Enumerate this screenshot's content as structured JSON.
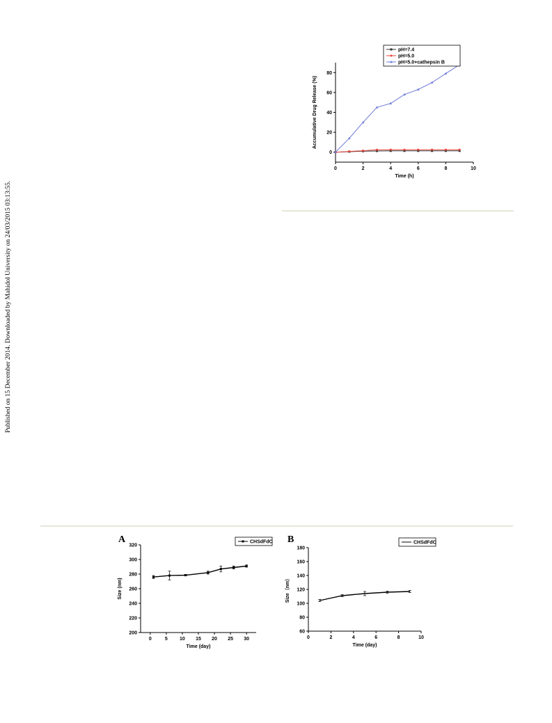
{
  "margin_note": "Published on 15 December 2014. Downloaded by Mahidol University on 24/03/2015 03:13:55.",
  "chart_data": [
    {
      "id": "release",
      "type": "line",
      "title": "",
      "xlabel": "Time (h)",
      "ylabel": "Accumulative Drug Release (%)",
      "xlim": [
        0,
        10
      ],
      "ylim": [
        -10,
        90
      ],
      "xticks": [
        0,
        2,
        4,
        6,
        8,
        10
      ],
      "yticks": [
        0,
        20,
        40,
        60,
        80
      ],
      "legend": "top-right",
      "series": [
        {
          "name": "pH=7.4",
          "color": "#333333",
          "marker": "square",
          "x": [
            0,
            1,
            2,
            3,
            4,
            5,
            6,
            7,
            8,
            9
          ],
          "y": [
            0,
            0.5,
            1,
            1.2,
            1.3,
            1.3,
            1.3,
            1.3,
            1.3,
            1.3
          ]
        },
        {
          "name": "pH=5.0",
          "color": "#e8463c",
          "marker": "circle",
          "x": [
            0,
            1,
            2,
            3,
            4,
            5,
            6,
            7,
            8,
            9
          ],
          "y": [
            0,
            0.8,
            1.5,
            2.4,
            2.5,
            2.5,
            2.5,
            2.5,
            2.5,
            2.5
          ]
        },
        {
          "name": "pH=5.0+cathepsin B",
          "color": "#6a78d6",
          "marker": "triangle",
          "x": [
            0,
            1,
            2,
            3,
            4,
            5,
            6,
            7,
            8,
            9
          ],
          "y": [
            0,
            14,
            30,
            45,
            49,
            58,
            63,
            70,
            79,
            88
          ]
        }
      ]
    },
    {
      "id": "A",
      "panel_label": "A",
      "type": "line",
      "title": "",
      "xlabel": "Time (day)",
      "ylabel": "Size (nm)",
      "xlim": [
        -3,
        33
      ],
      "ylim": [
        200,
        320
      ],
      "xticks": [
        0,
        5,
        10,
        15,
        20,
        25,
        30
      ],
      "yticks": [
        200,
        220,
        240,
        260,
        280,
        300,
        320
      ],
      "legend": "top-right",
      "series": [
        {
          "name": "CHSdFdC",
          "color": "#000000",
          "marker": "square",
          "x": [
            1,
            6,
            11,
            18,
            22,
            26,
            30
          ],
          "y": [
            276,
            278,
            278.5,
            282,
            287,
            289,
            291
          ],
          "err": [
            2,
            6,
            1,
            2,
            4,
            2,
            1.5
          ]
        }
      ]
    },
    {
      "id": "B",
      "panel_label": "B",
      "type": "line",
      "title": "",
      "xlabel": "Time (day)",
      "ylabel": "Size（nm）",
      "xlim": [
        0,
        10
      ],
      "ylim": [
        60,
        180
      ],
      "xticks": [
        0,
        2,
        4,
        6,
        8,
        10
      ],
      "yticks": [
        60,
        80,
        100,
        120,
        140,
        160,
        180
      ],
      "legend": "top-right",
      "series": [
        {
          "name": "CHSdFdC",
          "color": "#000000",
          "marker": "none",
          "x": [
            1,
            3,
            5,
            7,
            9
          ],
          "y": [
            104,
            111,
            114,
            116,
            117
          ],
          "err": [
            1.5,
            1.5,
            3,
            1.5,
            1.5
          ]
        }
      ]
    }
  ]
}
